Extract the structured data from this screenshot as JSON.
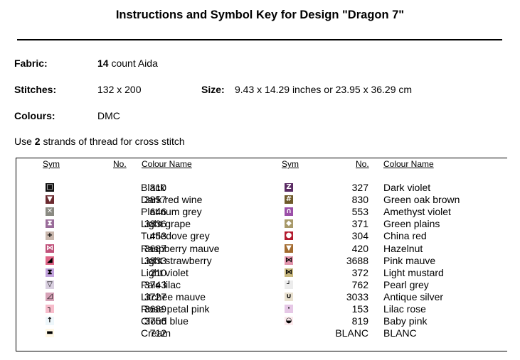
{
  "title": "Instructions and Symbol Key for Design \"Dragon 7\"",
  "fabric": {
    "label": "Fabric:",
    "count": "14",
    "rest": " count Aida"
  },
  "stitches": {
    "label": "Stitches:",
    "value": "132 x 200"
  },
  "size": {
    "label": "Size:",
    "value": "9.43 x 14.29 inches or 23.95 x 36.29 cm"
  },
  "colours": {
    "label": "Colours:",
    "value": "DMC"
  },
  "strands": {
    "pre": "Use ",
    "count": "2",
    "post": " strands of thread for cross stitch"
  },
  "headers": {
    "sym": "Sym",
    "no": "No.",
    "name": "Colour Name"
  },
  "left_rows": [
    {
      "no": "310",
      "name": "Black",
      "color": "#111111",
      "glyph": "□",
      "glyph_color": "#ffffff"
    },
    {
      "no": "3857",
      "name": "Dark red wine",
      "color": "#6b2a2f",
      "glyph": "▼",
      "glyph_color": "#ffffff"
    },
    {
      "no": "646",
      "name": "Platinum grey",
      "color": "#8a8a82",
      "glyph": "✕",
      "glyph_color": "#ffffff"
    },
    {
      "no": "3836",
      "name": "Light grape",
      "color": "#9a6c9a",
      "glyph": "⧗",
      "glyph_color": "#ffffff"
    },
    {
      "no": "453",
      "name": "Turtledove grey",
      "color": "#c9b7ad",
      "glyph": "+",
      "glyph_color": "#000000"
    },
    {
      "no": "3687",
      "name": "Raspberry mauve",
      "color": "#c0517a",
      "glyph": "⋈",
      "glyph_color": "#ffffff"
    },
    {
      "no": "3833",
      "name": "Light strawberry",
      "color": "#e06688",
      "glyph": "◢",
      "glyph_color": "#000000"
    },
    {
      "no": "210",
      "name": "Light violet",
      "color": "#c2a2dd",
      "glyph": "⧗",
      "glyph_color": "#000000"
    },
    {
      "no": "3743",
      "name": "Pale lilac",
      "color": "#d9cfe0",
      "glyph": "▽",
      "glyph_color": "#000000"
    },
    {
      "no": "3727",
      "name": "Litchee mauve",
      "color": "#d7a3b8",
      "glyph": "◿",
      "glyph_color": "#000000"
    },
    {
      "no": "3689",
      "name": "Rose petal pink",
      "color": "#f7bccb",
      "glyph": "┐",
      "glyph_color": "#000000"
    },
    {
      "no": "3756",
      "name": "Cloud blue",
      "color": "#eef7fb",
      "glyph": "↑",
      "glyph_color": "#000000"
    },
    {
      "no": "712",
      "name": "Cream",
      "color": "#fff8e6",
      "glyph": "▬",
      "glyph_color": "#000000"
    }
  ],
  "right_rows": [
    {
      "no": "327",
      "name": "Dark violet",
      "color": "#5a2a63",
      "glyph": "Z",
      "glyph_color": "#ffffff"
    },
    {
      "no": "830",
      "name": "Green oak brown",
      "color": "#6e5a2a",
      "glyph": "#",
      "glyph_color": "#ffffff"
    },
    {
      "no": "553",
      "name": "Amethyst violet",
      "color": "#9b4fa8",
      "glyph": "∩",
      "glyph_color": "#ffffff"
    },
    {
      "no": "371",
      "name": "Green plains",
      "color": "#a89a6a",
      "glyph": "◆",
      "glyph_color": "#ffffff"
    },
    {
      "no": "304",
      "name": "China red",
      "color": "#b31b2e",
      "glyph": "●",
      "glyph_color": "#ffffff"
    },
    {
      "no": "420",
      "name": "Hazelnut",
      "color": "#a36b2f",
      "glyph": "▼",
      "glyph_color": "#ffffff"
    },
    {
      "no": "3688",
      "name": "Pink mauve",
      "color": "#e295ad",
      "glyph": "⋈",
      "glyph_color": "#000000"
    },
    {
      "no": "372",
      "name": "Light mustard",
      "color": "#c8b87e",
      "glyph": "⋈",
      "glyph_color": "#000000"
    },
    {
      "no": "762",
      "name": "Pearl grey",
      "color": "#ececec",
      "glyph": "┘",
      "glyph_color": "#000000"
    },
    {
      "no": "3033",
      "name": "Antique silver",
      "color": "#e8e0cf",
      "glyph": "∪",
      "glyph_color": "#000000"
    },
    {
      "no": "153",
      "name": "Lilac rose",
      "color": "#e6c8e6",
      "glyph": "·",
      "glyph_color": "#000000"
    },
    {
      "no": "819",
      "name": "Baby pink",
      "color": "#fbe9ec",
      "glyph": "◒",
      "glyph_color": "#000000"
    },
    {
      "no": "BLANC",
      "name": "BLANC",
      "color": "#ffffff",
      "glyph": "",
      "glyph_color": "#000000"
    }
  ]
}
